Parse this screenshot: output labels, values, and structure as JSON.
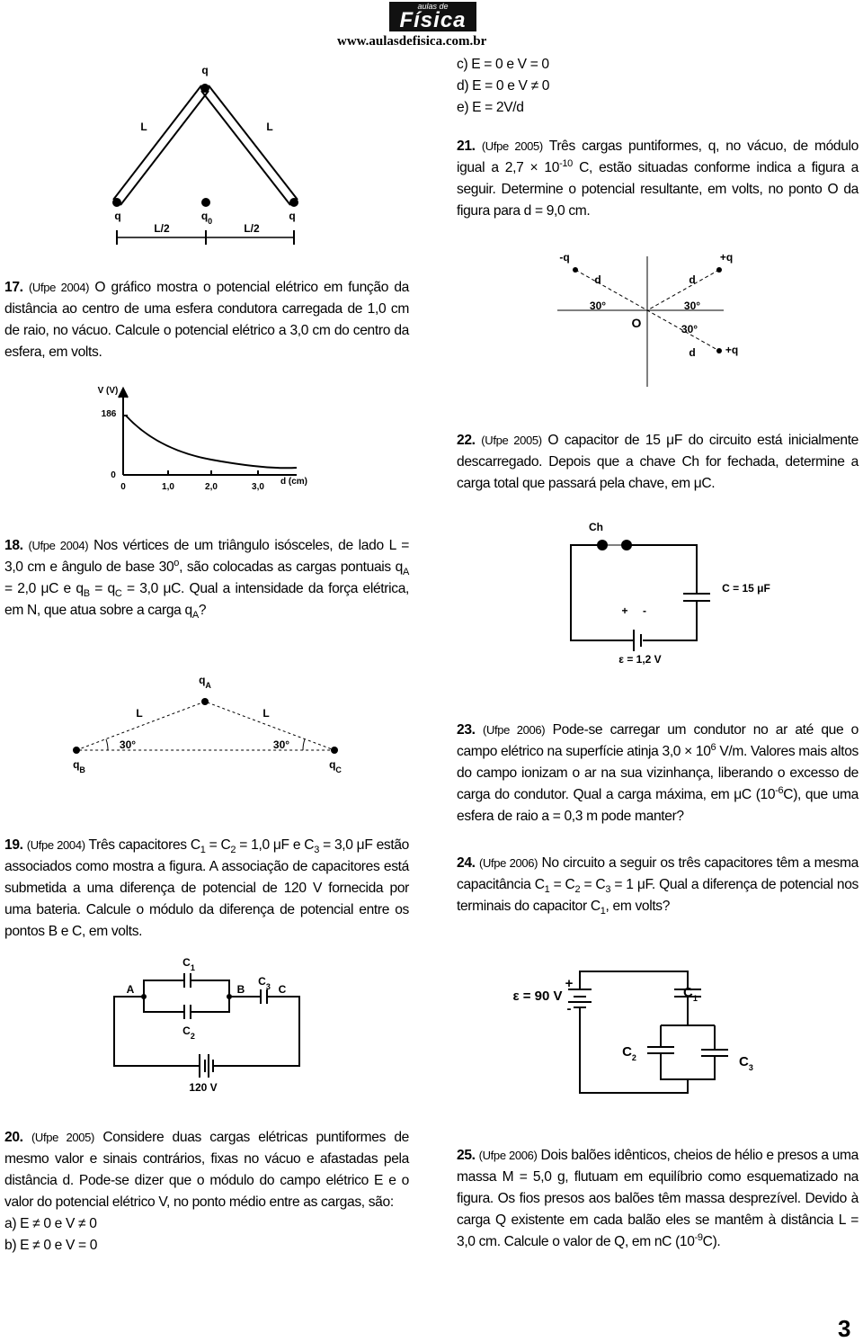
{
  "header": {
    "logo_top": "aulas de",
    "logo_main": "Física",
    "url": "www.aulasdefisica.com.br"
  },
  "questions": [
    {
      "number": "17.",
      "source": "(Ufpe 2004)",
      "text": [
        "O gráfico mostra o potencial elétrico em função da distância ao centro de uma esfera condutora carregada de 1,0 cm de raio, no vácuo. Calcule o potencial elétrico a 3,0 cm do centro da esfera, em volts."
      ]
    },
    {
      "number": "18.",
      "source": "(Ufpe 2004)",
      "text": [
        "Nos vértices de um triângulo isósceles, de lado L = 3,0 cm e ângulo de base 30",
        {
          "sup": "o"
        },
        ", são colocadas as cargas pontuais q",
        {
          "sub": "A"
        },
        " = 2,0 μC e q",
        {
          "sub": "B"
        },
        " = q",
        {
          "sub": "C"
        },
        " = 3,0 μC. Qual a intensidade da força elétrica, em N, que atua sobre a carga q",
        {
          "sub": "A"
        },
        "?"
      ]
    },
    {
      "number": "19.",
      "source": "(Ufpe 2004)",
      "text": [
        "Três capacitores C",
        {
          "sub": "1"
        },
        " = C",
        {
          "sub": "2"
        },
        " = 1,0 μF e C",
        {
          "sub": "3"
        },
        " = 3,0 μF estão associados como mostra a figura. A associação de capacitores está submetida a uma diferença de potencial de 120 V fornecida por uma bateria. Calcule o módulo da diferença de potencial entre os pontos B e C, em volts."
      ]
    },
    {
      "number": "20.",
      "source": "(Ufpe 2005)",
      "text": [
        "Considere duas cargas elétricas puntiformes de mesmo valor e sinais contrários, fixas no vácuo e afastadas pela distância d. Pode-se dizer que o módulo do campo elétrico E e o valor do potencial elétrico V, no ponto médio entre as cargas, são:"
      ],
      "options": [
        "a) E ≠ 0 e V ≠ 0",
        "b) E ≠ 0 e V = 0",
        "c) E = 0 e V = 0",
        "d) E = 0 e V ≠ 0",
        "e) E = 2V/d"
      ]
    },
    {
      "number": "21.",
      "source": "(Ufpe 2005)",
      "text": [
        "Três cargas puntiformes, q, no vácuo, de módulo igual a 2,7 × 10",
        {
          "sup": "-10"
        },
        " C, estão situadas conforme indica a figura a seguir. Determine o potencial resultante, em volts, no ponto O da figura para d = 9,0 cm."
      ]
    },
    {
      "number": "22.",
      "source": "(Ufpe 2005)",
      "text": [
        "O capacitor de 15 μF do circuito está inicialmente descarregado. Depois que a chave Ch for fechada, determine a carga total que passará pela chave, em μC."
      ]
    },
    {
      "number": "23.",
      "source": "(Ufpe 2006)",
      "text": [
        "Pode-se carregar um condutor no ar até que o campo elétrico na superfície atinja 3,0 × 10",
        {
          "sup": "6"
        },
        " V/m. Valores mais altos do campo ionizam o ar na sua vizinhança, liberando o excesso de carga do condutor. Qual a carga máxima, em μC (10",
        {
          "sup": "-6"
        },
        "C), que uma esfera de raio a = 0,3 m pode manter?"
      ]
    },
    {
      "number": "24.",
      "source": "(Ufpe 2006)",
      "text": [
        "No circuito a seguir os três capacitores têm a mesma capacitância C",
        {
          "sub": "1"
        },
        " = C",
        {
          "sub": "2"
        },
        " = C",
        {
          "sub": "3"
        },
        " = 1 μF. Qual a diferença de potencial nos terminais do capacitor C",
        {
          "sub": "1"
        },
        ", em volts?"
      ]
    },
    {
      "number": "25.",
      "source": "(Ufpe 2006)",
      "text": [
        "Dois balões idênticos, cheios de hélio e presos a uma massa M = 5,0 g, flutuam em equilíbrio como esquematizado na figura. Os fios presos aos balões têm massa desprezível. Devido à carga Q existente em cada balão eles se mantêm à distância L = 3,0 cm. Calcule o valor de Q, em nC (10",
        {
          "sup": "-9"
        },
        "C)."
      ]
    }
  ],
  "figures": {
    "triangle": {
      "labels": [
        [
          "q"
        ],
        [
          "L"
        ],
        [
          "L"
        ],
        [
          "q"
        ],
        [
          "q",
          {
            "sub": "0"
          }
        ],
        [
          "q"
        ],
        [
          "L/2"
        ],
        [
          "L/2"
        ]
      ]
    },
    "graph": {
      "labels": [
        "V (V)",
        "186",
        "0",
        "0",
        "1,0",
        "2,0",
        "3,0",
        "d (cm)"
      ]
    },
    "isosceles": {
      "labels": [
        [
          "q",
          {
            "sub": "A"
          }
        ],
        [
          "L"
        ],
        [
          "L"
        ],
        [
          "30°"
        ],
        [
          "30°"
        ],
        [
          "q",
          {
            "sub": "B"
          }
        ],
        [
          "q",
          {
            "sub": "C"
          }
        ]
      ]
    },
    "circuit19": {
      "labels": [
        [
          "C",
          {
            "sub": "1"
          }
        ],
        [
          "A"
        ],
        [
          "B"
        ],
        [
          "C",
          {
            "sub": "3"
          }
        ],
        [
          "C"
        ],
        [
          "C",
          {
            "sub": "2"
          }
        ],
        [
          "120 V"
        ]
      ]
    },
    "charges21": {
      "labels": [
        "-q",
        "+q",
        "d",
        "d",
        "30°",
        "O",
        "30°",
        "30°",
        "d",
        "+q"
      ]
    },
    "circuit22": {
      "labels": [
        "Ch",
        "C = 15 μF",
        "+",
        "-",
        "ε = 1,2 V"
      ]
    },
    "circuit24": {
      "labels": [
        [
          "ε = 90 V"
        ],
        [
          "+"
        ],
        [
          "-"
        ],
        [
          "C",
          {
            "sub": "1"
          }
        ],
        [
          "C",
          {
            "sub": "2"
          }
        ],
        [
          "C",
          {
            "sub": "3"
          }
        ]
      ]
    }
  },
  "page_number": "3"
}
